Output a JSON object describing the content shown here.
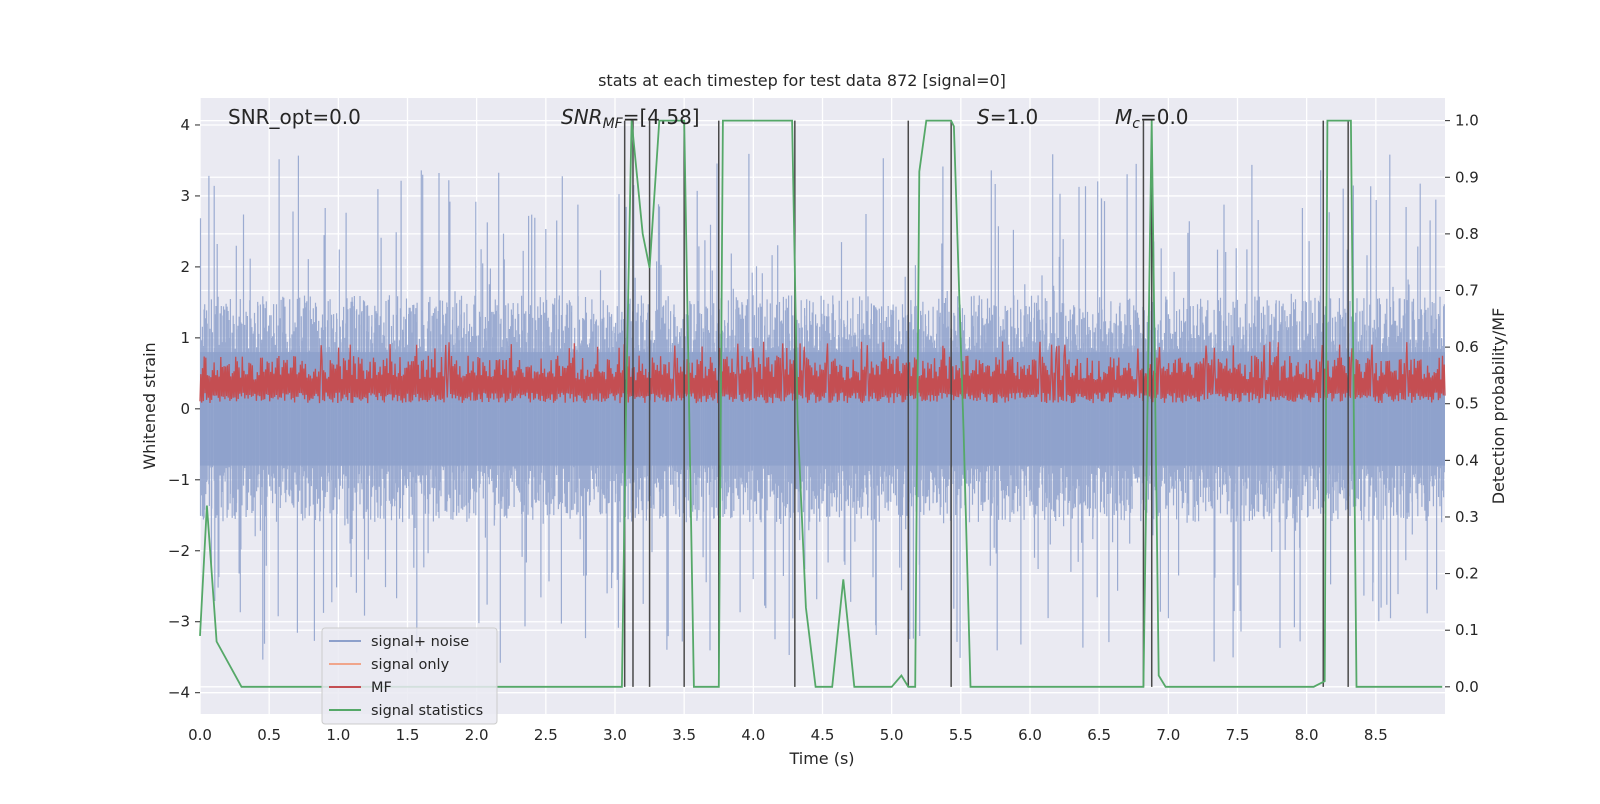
{
  "chart_data": {
    "type": "line",
    "title": "stats at each timestep for test data 872 [signal=0]",
    "xlabel": "Time (s)",
    "ylabel_left": "Whitened strain",
    "ylabel_right": "Detection probability/MF",
    "xlim": [
      0.0,
      9.0
    ],
    "ylim_left": [
      -4.3,
      4.38
    ],
    "ylim_right": [
      -0.048,
      1.04
    ],
    "x_ticks": [
      "0.0",
      "0.5",
      "1.0",
      "1.5",
      "2.0",
      "2.5",
      "3.0",
      "3.5",
      "4.0",
      "4.5",
      "5.0",
      "5.5",
      "6.0",
      "6.5",
      "7.0",
      "7.5",
      "8.0",
      "8.5"
    ],
    "y_ticks_left": [
      "4",
      "3",
      "2",
      "1",
      "0",
      "−1",
      "−2",
      "−3",
      "−4"
    ],
    "y_ticks_right": [
      "1.0",
      "0.9",
      "0.8",
      "0.7",
      "0.6",
      "0.5",
      "0.4",
      "0.3",
      "0.2",
      "0.1",
      "0.0"
    ],
    "grid": true,
    "legend_position": "lower-left",
    "annotations": {
      "snr_opt": "SNR_opt=0.0",
      "snr_mf_label": "SNR",
      "snr_mf_sub": "MF",
      "snr_mf_value": "=[4.58]",
      "s_label": "S",
      "s_value": "=1.0",
      "mc_label": "M",
      "mc_sub": "c",
      "mc_value": "=0.0"
    },
    "series": [
      {
        "name": "signal+ noise",
        "color": "#8da0cb",
        "description_values": "noise, roughly within ±1.5 with spikes up to ±3.7"
      },
      {
        "name": "signal only",
        "color": "#f0a58b",
        "values": []
      },
      {
        "name": "MF",
        "color": "#c44e52",
        "description_values": "band between 0.05 and 0.85"
      },
      {
        "name": "signal statistics",
        "color": "#55a868",
        "axis": "right",
        "x": [
          0.0,
          0.05,
          0.12,
          0.3,
          3.05,
          3.08,
          3.12,
          3.2,
          3.25,
          3.32,
          3.5,
          3.57,
          3.75,
          3.78,
          4.28,
          4.32,
          4.38,
          4.45,
          4.57,
          4.65,
          4.73,
          5.0,
          5.07,
          5.12,
          5.17,
          5.2,
          5.25,
          5.43,
          5.45,
          5.52,
          5.57,
          6.82,
          6.88,
          6.93,
          6.98,
          8.05,
          8.13,
          8.15,
          8.32,
          8.36,
          8.98
        ],
        "values": [
          0.09,
          0.32,
          0.08,
          0.0,
          0.0,
          0.5,
          1.0,
          0.8,
          0.74,
          1.0,
          1.0,
          0.0,
          0.0,
          1.0,
          1.0,
          0.47,
          0.14,
          0.0,
          0.0,
          0.19,
          0.0,
          0.0,
          0.02,
          0.0,
          0.0,
          0.91,
          1.0,
          1.0,
          0.99,
          0.45,
          0.0,
          0.0,
          1.0,
          0.02,
          0.0,
          0.0,
          0.01,
          1.0,
          1.0,
          0.0,
          0.0
        ]
      }
    ],
    "vertical_lines_x": [
      3.07,
      3.13,
      3.25,
      3.5,
      3.75,
      4.3,
      5.12,
      5.43,
      6.82,
      6.88,
      8.12,
      8.3
    ]
  },
  "legend": {
    "items": [
      {
        "label": "signal+ noise",
        "color": "#8da0cb"
      },
      {
        "label": "signal only",
        "color": "#f0a58b"
      },
      {
        "label": "MF",
        "color": "#c44e52"
      },
      {
        "label": "signal statistics",
        "color": "#55a868"
      }
    ]
  }
}
